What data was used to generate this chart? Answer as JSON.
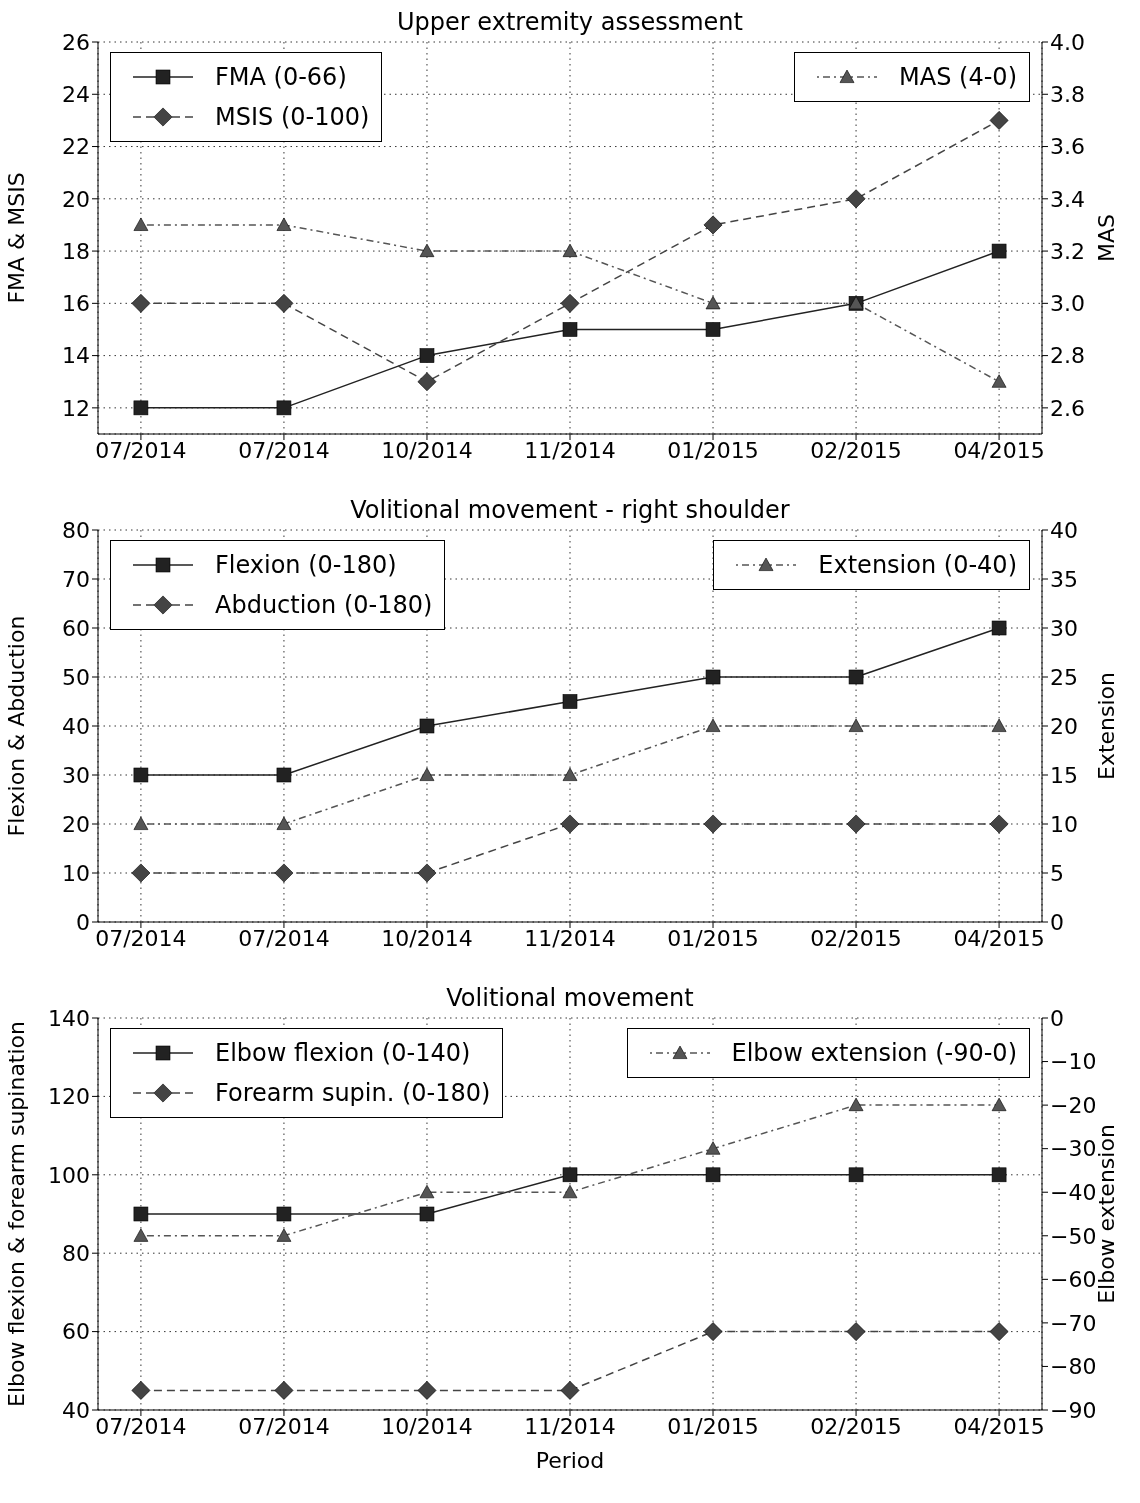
{
  "chart_data": [
    {
      "type": "line",
      "title": "Upper extremity assessment",
      "ylabel": "FMA & MSIS",
      "y2label": "MAS",
      "categories": [
        "07/2014",
        "07/2014",
        "10/2014",
        "11/2014",
        "01/2015",
        "02/2015",
        "04/2015"
      ],
      "series": [
        {
          "name": "FMA (0-66)",
          "color": "#222222",
          "marker": "square",
          "line_style": "solid",
          "values": [
            12,
            12,
            14,
            15,
            15,
            16,
            18
          ]
        },
        {
          "name": "MSIS (0-100)",
          "color": "#444444",
          "marker": "diamond",
          "line_style": "dashed",
          "values": [
            16,
            16,
            13,
            16,
            19,
            20,
            23
          ]
        },
        {
          "name": "MAS (4-0)",
          "color": "#555555",
          "marker": "triangle",
          "line_style": "dotted",
          "axis": "y2",
          "values": [
            3.3,
            3.3,
            3.2,
            3.2,
            3.0,
            3.0,
            2.7
          ]
        }
      ],
      "ylim": [
        11,
        26
      ],
      "yticks": [
        12,
        14,
        16,
        18,
        20,
        22,
        24,
        26
      ],
      "y2lim": [
        2.5,
        4.0
      ],
      "y2ticks": [
        2.6,
        2.8,
        {
          "value": 3.0,
          "label": "3.0"
        },
        3.2,
        3.4,
        3.6,
        3.8,
        {
          "value": 4.0,
          "label": "4.0"
        }
      ],
      "grid": true,
      "legend": "top left"
    },
    {
      "type": "line",
      "title": "Volitional movement - right shoulder",
      "ylabel": "Flexion & Abduction",
      "y2label": "Extension",
      "categories": [
        "07/2014",
        "07/2014",
        "10/2014",
        "11/2014",
        "01/2015",
        "02/2015",
        "04/2015"
      ],
      "series": [
        {
          "name": "Flexion (0-180)",
          "color": "#222222",
          "marker": "square",
          "line_style": "solid",
          "values": [
            30,
            30,
            40,
            45,
            50,
            50,
            60
          ]
        },
        {
          "name": "Abduction (0-180)",
          "color": "#444444",
          "marker": "diamond",
          "line_style": "dashed",
          "values": [
            10,
            10,
            10,
            20,
            20,
            20,
            20
          ]
        },
        {
          "name": "Extension (0-40)",
          "color": "#555555",
          "marker": "triangle",
          "line_style": "dotted",
          "axis": "y2",
          "values": [
            10,
            10,
            15,
            15,
            20,
            20,
            20
          ]
        }
      ],
      "ylim": [
        0,
        80
      ],
      "yticks": [
        0,
        10,
        20,
        30,
        40,
        50,
        60,
        70,
        80
      ],
      "y2lim": [
        0,
        40
      ],
      "y2ticks": [
        0,
        5,
        10,
        15,
        20,
        25,
        30,
        35,
        40
      ],
      "grid": true,
      "legend": "top left"
    },
    {
      "type": "line",
      "title": "Volitional movement",
      "xlabel": "Period",
      "ylabel": "Elbow flexion & forearm supination",
      "y2label": "Elbow extension",
      "categories": [
        "07/2014",
        "07/2014",
        "10/2014",
        "11/2014",
        "01/2015",
        "02/2015",
        "04/2015"
      ],
      "series": [
        {
          "name": "Elbow flexion (0-140)",
          "color": "#222222",
          "marker": "square",
          "line_style": "solid",
          "values": [
            90,
            90,
            90,
            100,
            100,
            100,
            100
          ]
        },
        {
          "name": "Forearm supin. (0-180)",
          "color": "#444444",
          "marker": "diamond",
          "line_style": "dashed",
          "values": [
            45,
            45,
            45,
            45,
            60,
            60,
            60
          ]
        },
        {
          "name": "Elbow extension (-90-0)",
          "color": "#555555",
          "marker": "triangle",
          "line_style": "dotted",
          "axis": "y2",
          "values": [
            -50,
            -50,
            -40,
            -40,
            -30,
            -20,
            -20
          ]
        }
      ],
      "ylim": [
        40,
        140
      ],
      "yticks": [
        40,
        60,
        80,
        100,
        120,
        140
      ],
      "y2lim": [
        -90,
        0
      ],
      "y2ticks": [
        {
          "value": -90,
          "label": "−90"
        },
        {
          "value": -80,
          "label": "−80"
        },
        {
          "value": -70,
          "label": "−70"
        },
        {
          "value": -60,
          "label": "−60"
        },
        {
          "value": -50,
          "label": "−50"
        },
        {
          "value": -40,
          "label": "−40"
        },
        {
          "value": -30,
          "label": "−30"
        },
        {
          "value": -20,
          "label": "−20"
        },
        {
          "value": -10,
          "label": "−10"
        },
        0
      ],
      "grid": true,
      "legend": "top left"
    }
  ]
}
